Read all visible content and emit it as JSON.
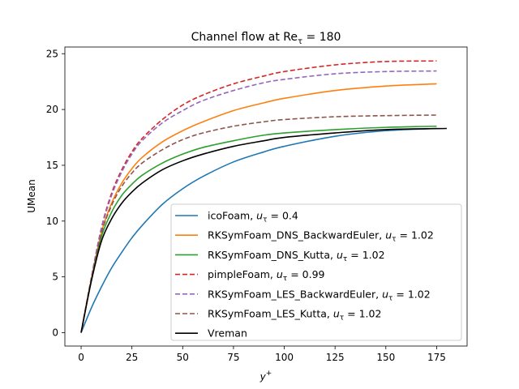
{
  "chart_data": {
    "type": "line",
    "title": "Channel flow at Re",
    "title_sub": "τ",
    "title_tail": " = 180",
    "xlabel": "y",
    "xlabel_sup": "+",
    "ylabel": "UMean",
    "xlim": [
      -8,
      190
    ],
    "ylim": [
      -1.2,
      25.6
    ],
    "xticks": [
      0,
      25,
      50,
      75,
      100,
      125,
      150,
      175
    ],
    "yticks": [
      0,
      5,
      10,
      15,
      20,
      25
    ],
    "grid": false,
    "legend_position": "lower-right",
    "series": [
      {
        "name": "icoFoam, ",
        "name_math": "u",
        "name_sub": "τ",
        "name_tail": " = 0.4",
        "color": "#1f77b4",
        "dash": "solid",
        "x": [
          0,
          5,
          10,
          15,
          20,
          25,
          30,
          40,
          50,
          60,
          75,
          90,
          100,
          125,
          150,
          175
        ],
        "y": [
          0,
          2.2,
          4.1,
          5.8,
          7.2,
          8.5,
          9.6,
          11.5,
          12.9,
          14.0,
          15.3,
          16.2,
          16.7,
          17.6,
          18.1,
          18.3
        ]
      },
      {
        "name": "RKSymFoam_DNS_BackwardEuler, ",
        "name_math": "u",
        "name_sub": "τ",
        "name_tail": " = 1.02",
        "color": "#ff7f0e",
        "dash": "solid",
        "x": [
          0,
          5,
          10,
          15,
          20,
          25,
          30,
          40,
          50,
          60,
          75,
          90,
          100,
          125,
          150,
          175
        ],
        "y": [
          0,
          4.8,
          9.0,
          11.6,
          13.4,
          14.7,
          15.7,
          17.1,
          18.1,
          18.9,
          19.9,
          20.6,
          21.0,
          21.7,
          22.1,
          22.3
        ]
      },
      {
        "name": "RKSymFoam_DNS_Kutta, ",
        "name_math": "u",
        "name_sub": "τ",
        "name_tail": " = 1.02",
        "color": "#2ca02c",
        "dash": "solid",
        "x": [
          0,
          5,
          10,
          15,
          20,
          25,
          30,
          40,
          50,
          60,
          75,
          90,
          100,
          125,
          150,
          175
        ],
        "y": [
          0,
          4.7,
          8.6,
          10.8,
          12.3,
          13.3,
          14.1,
          15.2,
          16.0,
          16.6,
          17.2,
          17.7,
          17.9,
          18.2,
          18.4,
          18.5
        ]
      },
      {
        "name": "pimpleFoam, ",
        "name_math": "u",
        "name_sub": "τ",
        "name_tail": " = 0.99",
        "color": "#d62728",
        "dash": "dashed",
        "x": [
          0,
          5,
          10,
          15,
          20,
          25,
          30,
          40,
          50,
          60,
          75,
          90,
          100,
          125,
          150,
          175
        ],
        "y": [
          0,
          4.9,
          9.4,
          12.5,
          14.6,
          16.2,
          17.4,
          19.1,
          20.4,
          21.3,
          22.3,
          23.0,
          23.4,
          24.0,
          24.3,
          24.35
        ]
      },
      {
        "name": "RKSymFoam_LES_BackwardEuler, ",
        "name_math": "u",
        "name_sub": "τ",
        "name_tail": " = 1.02",
        "color": "#9467bd",
        "dash": "dashed",
        "x": [
          0,
          5,
          10,
          15,
          20,
          25,
          30,
          40,
          50,
          60,
          75,
          90,
          100,
          125,
          150,
          175
        ],
        "y": [
          0,
          4.9,
          9.3,
          12.3,
          14.4,
          16.0,
          17.2,
          18.8,
          19.9,
          20.8,
          21.7,
          22.4,
          22.7,
          23.2,
          23.4,
          23.45
        ]
      },
      {
        "name": "RKSymFoam_LES_Kutta, ",
        "name_math": "u",
        "name_sub": "τ",
        "name_tail": " = 1.02",
        "color": "#8c564b",
        "dash": "dashed",
        "x": [
          0,
          5,
          10,
          15,
          20,
          25,
          30,
          40,
          50,
          60,
          75,
          90,
          100,
          125,
          150,
          175
        ],
        "y": [
          0,
          4.8,
          8.9,
          11.4,
          13.1,
          14.3,
          15.2,
          16.4,
          17.3,
          17.9,
          18.5,
          18.9,
          19.1,
          19.35,
          19.45,
          19.5
        ]
      },
      {
        "name": "Vreman",
        "name_math": "",
        "name_sub": "",
        "name_tail": "",
        "color": "#000000",
        "dash": "solid",
        "x": [
          0,
          5,
          10,
          15,
          20,
          25,
          30,
          40,
          50,
          60,
          75,
          90,
          100,
          125,
          150,
          180
        ],
        "y": [
          0,
          4.6,
          8.2,
          10.2,
          11.6,
          12.6,
          13.4,
          14.6,
          15.4,
          16.0,
          16.7,
          17.2,
          17.5,
          17.9,
          18.2,
          18.3
        ]
      }
    ]
  }
}
